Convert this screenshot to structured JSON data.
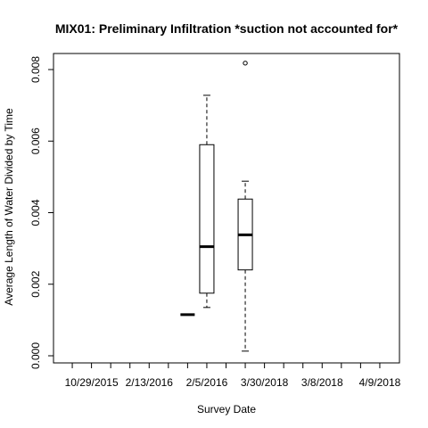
{
  "chart_data": {
    "type": "box",
    "title": "MIX01: Preliminary Infiltration *suction not accounted for*",
    "xlabel": "Survey Date",
    "ylabel": "Average Length of Water Divided by Time",
    "x_tick_labels_shown": [
      "10/29/2015",
      "2/13/2016",
      "2/5/2016",
      "3/30/2018",
      "3/8/2018",
      "4/9/2018"
    ],
    "categories_count": 17,
    "ylim": [
      -0.0002,
      0.0085
    ],
    "yticks": [
      0.0,
      0.002,
      0.004,
      0.006,
      0.008
    ],
    "ytick_labels": [
      "0.000",
      "0.002",
      "0.004",
      "0.006",
      "0.008"
    ],
    "boxes": [
      {
        "position": 6,
        "min": 0.00115,
        "q1": 0.00115,
        "median": 0.00115,
        "q3": 0.00115,
        "max": 0.00115,
        "outliers": []
      },
      {
        "position": 7,
        "min": 0.00135,
        "q1": 0.00175,
        "median": 0.00305,
        "q3": 0.0059,
        "max": 0.00728,
        "outliers": []
      },
      {
        "position": 9,
        "min": 0.00013,
        "q1": 0.0024,
        "median": 0.00338,
        "q3": 0.00438,
        "max": 0.00488,
        "outliers": [
          0.00818
        ]
      }
    ],
    "grid": false,
    "legend": "none"
  }
}
